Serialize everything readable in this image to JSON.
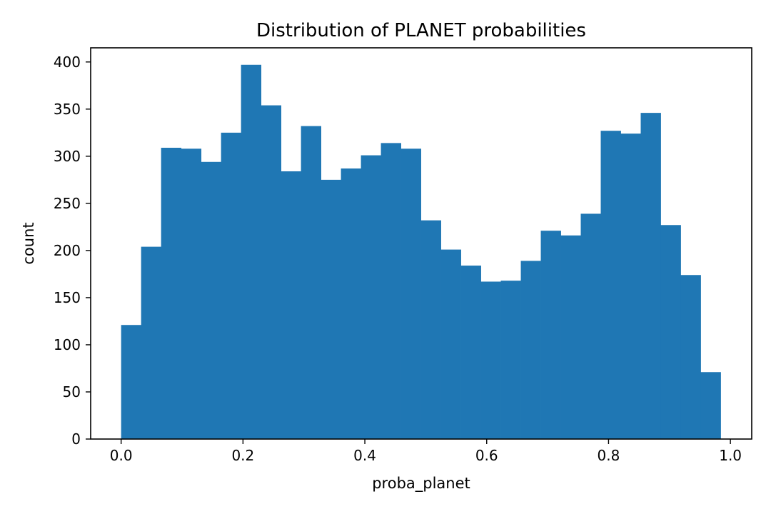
{
  "chart_data": {
    "type": "bar",
    "title": "Distribution of PLANET probabilities",
    "xlabel": "proba_planet",
    "ylabel": "count",
    "xlim": [
      -0.05,
      1.035
    ],
    "ylim": [
      0,
      415
    ],
    "x_ticks": [
      0.0,
      0.2,
      0.4,
      0.6,
      0.8,
      1.0
    ],
    "x_tick_labels": [
      "0.0",
      "0.2",
      "0.4",
      "0.6",
      "0.8",
      "1.0"
    ],
    "y_ticks": [
      0,
      50,
      100,
      150,
      200,
      250,
      300,
      350,
      400
    ],
    "y_tick_labels": [
      "0",
      "50",
      "100",
      "150",
      "200",
      "250",
      "300",
      "350",
      "400"
    ],
    "bin_start": 0.0,
    "bin_width": 0.0328,
    "values": [
      121,
      204,
      309,
      308,
      294,
      325,
      397,
      354,
      284,
      332,
      275,
      287,
      301,
      314,
      308,
      232,
      201,
      184,
      167,
      168,
      189,
      221,
      216,
      239,
      327,
      324,
      346,
      227,
      174,
      71
    ],
    "bar_color": "#1f77b4",
    "grid": false,
    "legend": "none"
  }
}
